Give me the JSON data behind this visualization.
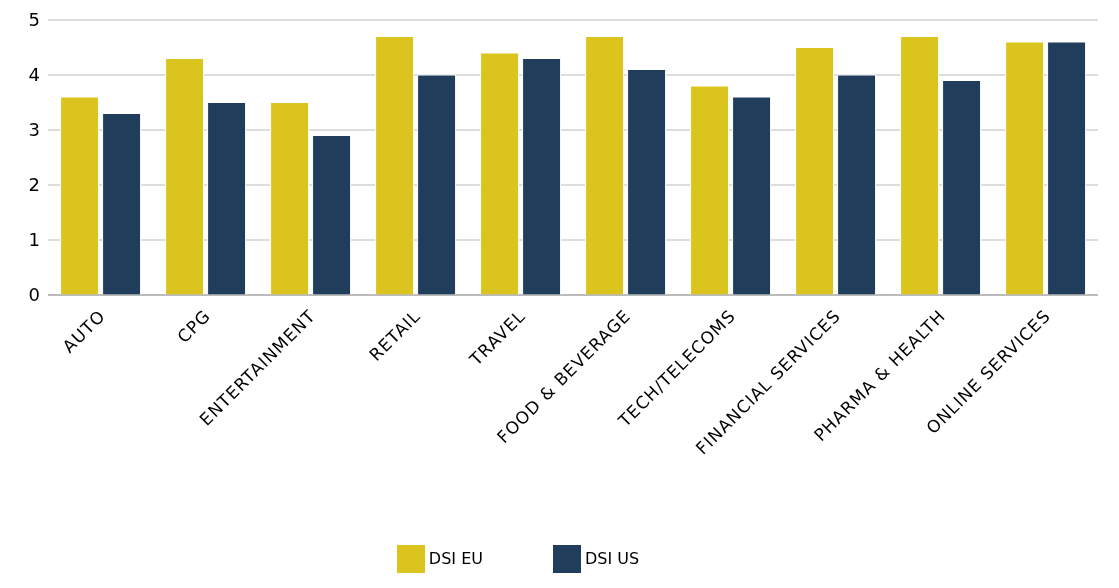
{
  "chart_data": {
    "type": "bar",
    "categories": [
      "AUTO",
      "CPG",
      "ENTERTAINMENT",
      "RETAIL",
      "TRAVEL",
      "FOOD & BEVERAGE",
      "TECH/TELECOMS",
      "FINANCIAL SERVICES",
      "PHARMA & HEALTH",
      "ONLINE SERVICES"
    ],
    "series": [
      {
        "name": "DSI EU",
        "color": "#dcc41e",
        "values": [
          3.6,
          4.3,
          3.5,
          4.7,
          4.4,
          4.7,
          3.8,
          4.5,
          4.7,
          4.6
        ]
      },
      {
        "name": "DSI US",
        "color": "#213d5c",
        "values": [
          3.3,
          3.5,
          2.9,
          4.0,
          4.3,
          4.1,
          3.6,
          4.0,
          3.9,
          4.6
        ]
      }
    ],
    "ylim": [
      0,
      5
    ],
    "yticks": [
      0,
      1,
      2,
      3,
      4,
      5
    ],
    "grid": "y",
    "legend": "bottom"
  }
}
